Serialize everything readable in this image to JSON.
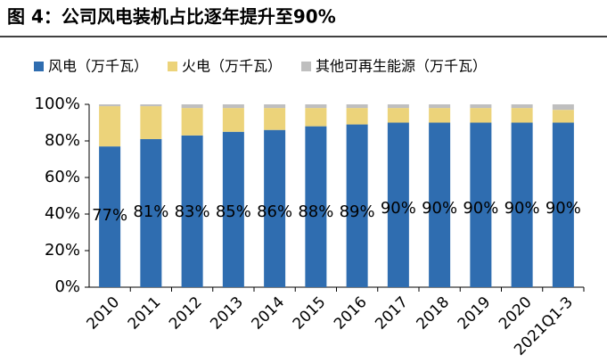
{
  "chart_data": {
    "type": "stacked_bar",
    "title": "图 4：公司风电装机占比逐年提升至90%",
    "categories": [
      "2010",
      "2011",
      "2012",
      "2013",
      "2014",
      "2015",
      "2016",
      "2017",
      "2018",
      "2019",
      "2020",
      "2021Q1-3"
    ],
    "series": [
      {
        "name": "风电（万千瓦）",
        "color": "#2f6db0",
        "values": [
          77,
          81,
          83,
          85,
          86,
          88,
          89,
          90,
          90,
          90,
          90,
          90
        ],
        "value_labels": [
          "77%",
          "81%",
          "83%",
          "85%",
          "86%",
          "88%",
          "89%",
          "90%",
          "90%",
          "90%",
          "90%",
          "90%"
        ]
      },
      {
        "name": "火电（万千瓦）",
        "color": "#ecd37a",
        "values": [
          22,
          18,
          15,
          13,
          12,
          10,
          9,
          8,
          8,
          8,
          8,
          7
        ]
      },
      {
        "name": "其他可再生能源（万千瓦）",
        "color": "#bfbfbf",
        "values": [
          1,
          1,
          2,
          2,
          2,
          2,
          2,
          2,
          2,
          2,
          2,
          3
        ]
      }
    ],
    "ylim": [
      0,
      100
    ],
    "yticks": [
      {
        "value": 0,
        "label": "0%"
      },
      {
        "value": 20,
        "label": "20%"
      },
      {
        "value": 40,
        "label": "40%"
      },
      {
        "value": 60,
        "label": "60%"
      },
      {
        "value": 80,
        "label": "80%"
      },
      {
        "value": 100,
        "label": "100%"
      }
    ]
  }
}
